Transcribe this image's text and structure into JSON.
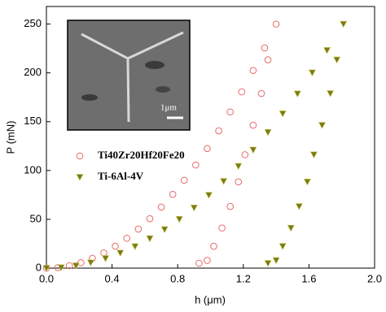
{
  "chart_data": {
    "type": "scatter",
    "x_label": "h (μm)",
    "y_label": "P (mN)",
    "inset_scale_label": "1μm",
    "xlim": [
      0,
      2.0
    ],
    "ylim": [
      0,
      268
    ],
    "xticks": [
      {
        "value": 0,
        "label": "0.0"
      },
      0.4,
      0.8,
      1.2,
      1.6,
      {
        "value": 2.0,
        "label": "2.0"
      }
    ],
    "yticks": [
      0,
      50,
      100,
      150,
      200,
      250
    ],
    "legend": "left",
    "series": [
      {
        "name": "Ti40Zr20Hf20Fe20",
        "color": "#e86a6a",
        "marker": "circle",
        "x": [
          0,
          0.07,
          0.14,
          0.21,
          0.28,
          0.35,
          0.42,
          0.49,
          0.56,
          0.63,
          0.7,
          0.77,
          0.84,
          0.91,
          0.98,
          1.05,
          1.12,
          1.19,
          1.26,
          1.33,
          1.4,
          1.35,
          1.31,
          1.26,
          1.21,
          1.17,
          1.12,
          1.07,
          1.02,
          0.98,
          0.93
        ],
        "values": [
          0,
          0.6,
          2.5,
          5.6,
          10.0,
          15.6,
          22.5,
          30.6,
          40.0,
          50.6,
          62.5,
          75.6,
          90.0,
          105.6,
          122.5,
          140.6,
          160.0,
          180.6,
          202.5,
          225.6,
          250,
          213.4,
          178.9,
          146.4,
          116.2,
          88.4,
          63.2,
          41.1,
          22.4,
          7.9,
          5
        ]
      },
      {
        "name": "Ti-6Al-4V",
        "color": "#7a7a1a",
        "marker": "triangle-down",
        "x": [
          0,
          0.09,
          0.18,
          0.27,
          0.36,
          0.45,
          0.54,
          0.63,
          0.72,
          0.81,
          0.9,
          0.99,
          1.08,
          1.17,
          1.26,
          1.35,
          1.44,
          1.53,
          1.62,
          1.71,
          1.81,
          1.77,
          1.73,
          1.68,
          1.63,
          1.59,
          1.54,
          1.49,
          1.44,
          1.4,
          1.35
        ],
        "values": [
          0,
          0.6,
          2.5,
          5.6,
          9.9,
          15.5,
          22.2,
          30.3,
          39.6,
          50.1,
          61.8,
          74.8,
          89.0,
          104.4,
          121.1,
          139.1,
          158.2,
          178.6,
          200.2,
          223.1,
          250,
          213.4,
          178.9,
          146.4,
          116.2,
          88.4,
          63.2,
          41.1,
          22.4,
          7.9,
          5
        ]
      }
    ]
  }
}
